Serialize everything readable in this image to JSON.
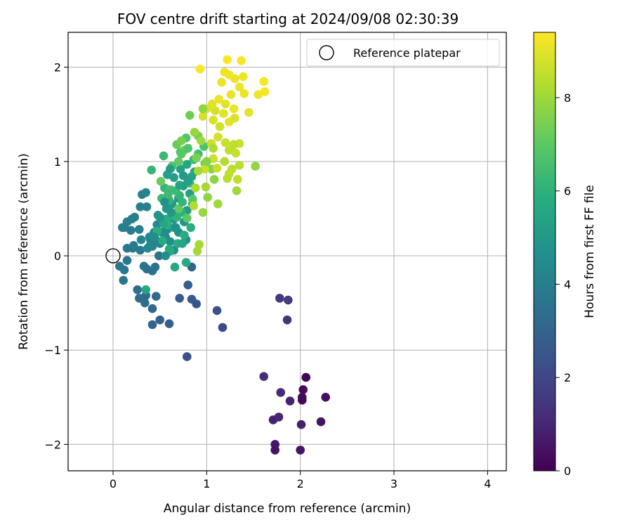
{
  "chart_data": {
    "type": "scatter",
    "title": "FOV centre drift starting at 2024/09/08 02:30:39",
    "xlabel": "Angular distance from reference (arcmin)",
    "ylabel": "Rotation from reference (arcmin)",
    "xlim": [
      -0.48,
      4.2
    ],
    "ylim": [
      -2.28,
      2.37
    ],
    "x_ticks": [
      0,
      1,
      2,
      3,
      4
    ],
    "y_ticks": [
      -2,
      -1,
      0,
      1,
      2
    ],
    "grid": true,
    "legend": {
      "placement": "top-right",
      "entries": [
        "Reference platepar"
      ]
    },
    "reference_point": {
      "x": 0,
      "y": 0
    },
    "colorbar": {
      "label": "Hours from first FF file",
      "ticks": [
        0,
        2,
        4,
        6,
        8
      ],
      "range": [
        0,
        9.4
      ],
      "colormap": "viridis"
    },
    "points": [
      [
        2.06,
        -1.29,
        0.1
      ],
      [
        2.03,
        -1.42,
        0.2
      ],
      [
        2.02,
        -1.5,
        0.3
      ],
      [
        2.02,
        -1.53,
        0.2
      ],
      [
        2.27,
        -1.5,
        0.4
      ],
      [
        2.22,
        -1.76,
        0.5
      ],
      [
        2.01,
        -1.79,
        0.8
      ],
      [
        2.0,
        -2.06,
        0.5
      ],
      [
        1.73,
        -2.0,
        0.6
      ],
      [
        1.73,
        -2.06,
        0.5
      ],
      [
        1.71,
        -1.74,
        0.9
      ],
      [
        1.77,
        -1.71,
        1.0
      ],
      [
        1.89,
        -1.54,
        0.9
      ],
      [
        1.79,
        -1.45,
        1.1
      ],
      [
        1.61,
        -1.28,
        1.2
      ],
      [
        1.78,
        -0.45,
        1.6
      ],
      [
        1.87,
        -0.47,
        1.7
      ],
      [
        1.86,
        -0.68,
        1.4
      ],
      [
        1.17,
        -0.76,
        2.1
      ],
      [
        1.11,
        -0.58,
        2.3
      ],
      [
        0.79,
        -1.07,
        2.3
      ],
      [
        0.89,
        -0.51,
        2.5
      ],
      [
        0.84,
        -0.46,
        2.6
      ],
      [
        0.71,
        -0.45,
        2.7
      ],
      [
        0.8,
        -0.31,
        2.8
      ],
      [
        0.6,
        -0.72,
        2.9
      ],
      [
        0.5,
        -0.68,
        2.9
      ],
      [
        0.42,
        -0.73,
        3.0
      ],
      [
        0.84,
        -0.12,
        3.1
      ],
      [
        0.35,
        -0.42,
        3.2
      ],
      [
        0.46,
        -0.43,
        3.2
      ],
      [
        0.42,
        -0.56,
        3.1
      ],
      [
        0.28,
        -0.45,
        3.3
      ],
      [
        0.34,
        -0.5,
        3.4
      ],
      [
        0.26,
        -0.36,
        3.4
      ],
      [
        0.42,
        -0.16,
        3.5
      ],
      [
        0.45,
        -0.12,
        3.5
      ],
      [
        0.36,
        -0.14,
        3.5
      ],
      [
        0.33,
        -0.11,
        3.6
      ],
      [
        0.49,
        0.0,
        3.6
      ],
      [
        0.11,
        -0.26,
        3.6
      ],
      [
        0.12,
        -0.15,
        3.7
      ],
      [
        0.07,
        -0.11,
        3.7
      ],
      [
        0.15,
        -0.05,
        3.7
      ],
      [
        0.15,
        0.08,
        3.8
      ],
      [
        0.21,
        0.08,
        3.8
      ],
      [
        0.29,
        0.06,
        3.8
      ],
      [
        0.22,
        0.11,
        3.9
      ],
      [
        0.39,
        0.1,
        3.9
      ],
      [
        0.12,
        0.3,
        3.9
      ],
      [
        0.19,
        0.27,
        3.9
      ],
      [
        0.28,
        0.28,
        4.0
      ],
      [
        0.1,
        0.3,
        4.0
      ],
      [
        0.15,
        0.36,
        4.0
      ],
      [
        0.2,
        0.39,
        4.0
      ],
      [
        0.23,
        0.41,
        4.0
      ],
      [
        0.29,
        0.52,
        4.1
      ],
      [
        0.36,
        0.52,
        4.1
      ],
      [
        0.31,
        0.65,
        4.1
      ],
      [
        0.35,
        0.67,
        4.2
      ],
      [
        0.42,
        0.1,
        4.2
      ],
      [
        0.4,
        0.17,
        4.2
      ],
      [
        0.45,
        0.18,
        4.2
      ],
      [
        0.39,
        0.2,
        4.3
      ],
      [
        0.5,
        0.13,
        4.3
      ],
      [
        0.44,
        0.25,
        4.3
      ],
      [
        0.47,
        0.33,
        4.4
      ],
      [
        0.56,
        0.2,
        4.4
      ],
      [
        0.52,
        0.25,
        4.5
      ],
      [
        0.65,
        0.06,
        4.5
      ],
      [
        0.61,
        0.15,
        4.6
      ],
      [
        0.58,
        0.28,
        4.6
      ],
      [
        0.7,
        0.25,
        4.7
      ],
      [
        0.78,
        0.17,
        4.7
      ],
      [
        0.65,
        0.39,
        4.8
      ],
      [
        0.48,
        0.43,
        4.8
      ],
      [
        0.57,
        0.5,
        4.9
      ],
      [
        0.76,
        0.36,
        4.9
      ],
      [
        0.63,
        0.55,
        5.0
      ],
      [
        0.7,
        0.61,
        5.0
      ],
      [
        0.79,
        0.48,
        5.1
      ],
      [
        0.85,
        0.55,
        5.1
      ],
      [
        0.82,
        0.66,
        5.2
      ],
      [
        0.75,
        0.74,
        5.2
      ],
      [
        0.65,
        0.83,
        5.3
      ],
      [
        0.58,
        0.86,
        5.3
      ],
      [
        0.72,
        0.92,
        5.4
      ],
      [
        0.84,
        0.84,
        5.4
      ],
      [
        0.79,
        0.97,
        5.5
      ],
      [
        0.87,
        0.89,
        5.5
      ],
      [
        0.35,
        -0.36,
        5.6
      ],
      [
        0.66,
        -0.12,
        5.6
      ],
      [
        0.78,
        -0.07,
        5.7
      ],
      [
        0.61,
        0.05,
        5.7
      ],
      [
        0.69,
        0.13,
        5.8
      ],
      [
        0.76,
        0.22,
        5.8
      ],
      [
        0.83,
        0.3,
        5.9
      ],
      [
        0.57,
        0.39,
        5.9
      ],
      [
        0.66,
        0.42,
        6.0
      ],
      [
        0.73,
        0.46,
        6.0
      ],
      [
        0.6,
        0.59,
        6.1
      ],
      [
        0.71,
        0.64,
        6.1
      ],
      [
        0.55,
        0.72,
        6.2
      ],
      [
        0.41,
        0.91,
        6.2
      ],
      [
        0.54,
        1.06,
        6.3
      ],
      [
        0.82,
        0.77,
        6.3
      ],
      [
        0.86,
        1.02,
        6.4
      ],
      [
        0.91,
        1.08,
        6.5
      ],
      [
        0.72,
        1.1,
        6.6
      ],
      [
        0.97,
        1.16,
        6.7
      ],
      [
        0.78,
        1.25,
        6.8
      ],
      [
        0.85,
        0.6,
        6.9
      ],
      [
        0.79,
        0.4,
        7.0
      ],
      [
        0.7,
        0.5,
        7.1
      ],
      [
        0.62,
        0.7,
        7.1
      ],
      [
        0.51,
        0.79,
        7.2
      ],
      [
        0.68,
        1.18,
        7.2
      ],
      [
        0.82,
        1.49,
        7.3
      ],
      [
        0.73,
        1.22,
        7.4
      ],
      [
        0.91,
        1.27,
        7.4
      ],
      [
        0.98,
        0.98,
        7.5
      ],
      [
        1.05,
        0.92,
        7.6
      ],
      [
        1.08,
        0.81,
        7.7
      ],
      [
        1.01,
        0.62,
        7.8
      ],
      [
        0.96,
        0.46,
        7.9
      ],
      [
        1.12,
        0.55,
        8.0
      ],
      [
        0.92,
        0.12,
        8.1
      ],
      [
        0.9,
        0.05,
        8.1
      ],
      [
        0.88,
        0.72,
        8.2
      ],
      [
        0.86,
        0.53,
        8.3
      ],
      [
        1.19,
        1.0,
        8.3
      ],
      [
        1.27,
        0.92,
        8.4
      ],
      [
        1.33,
        0.81,
        8.5
      ],
      [
        1.24,
        0.87,
        8.5
      ],
      [
        1.31,
        1.09,
        8.6
      ],
      [
        1.2,
        1.2,
        8.6
      ],
      [
        1.35,
        1.19,
        8.7
      ],
      [
        1.14,
        1.37,
        8.7
      ],
      [
        0.96,
        1.48,
        8.8
      ],
      [
        1.09,
        1.54,
        8.8
      ],
      [
        1.3,
        1.46,
        8.9
      ],
      [
        1.45,
        1.52,
        9.0
      ],
      [
        1.06,
        1.61,
        9.0
      ],
      [
        1.2,
        1.61,
        9.0
      ],
      [
        1.26,
        1.71,
        9.1
      ],
      [
        1.16,
        1.84,
        9.1
      ],
      [
        1.3,
        1.88,
        9.1
      ],
      [
        1.35,
        1.79,
        9.2
      ],
      [
        1.4,
        1.72,
        9.2
      ],
      [
        1.19,
        1.95,
        9.2
      ],
      [
        1.22,
        2.08,
        9.3
      ],
      [
        1.37,
        2.07,
        9.3
      ],
      [
        0.93,
        1.98,
        9.3
      ],
      [
        1.61,
        1.85,
        9.3
      ],
      [
        1.62,
        1.74,
        9.3
      ],
      [
        1.55,
        1.71,
        9.2
      ],
      [
        1.39,
        1.9,
        9.2
      ],
      [
        1.24,
        1.92,
        9.2
      ],
      [
        1.29,
        1.56,
        9.1
      ],
      [
        1.13,
        1.66,
        9.1
      ],
      [
        1.18,
        1.51,
        9.0
      ],
      [
        1.24,
        1.42,
        9.0
      ],
      [
        1.07,
        1.44,
        8.9
      ],
      [
        1.0,
        1.56,
        8.9
      ],
      [
        1.12,
        1.26,
        8.8
      ],
      [
        1.05,
        1.19,
        8.7
      ],
      [
        1.07,
        1.03,
        8.7
      ],
      [
        0.98,
        0.92,
        8.6
      ],
      [
        1.11,
        0.93,
        8.6
      ],
      [
        1.24,
        1.12,
        8.5
      ],
      [
        1.29,
        1.18,
        8.5
      ],
      [
        1.35,
        0.96,
        8.4
      ],
      [
        1.22,
        0.82,
        8.4
      ],
      [
        1.52,
        0.95,
        7.8
      ],
      [
        1.32,
        0.69,
        8.0
      ],
      [
        0.99,
        0.73,
        8.1
      ],
      [
        1.07,
        1.14,
        8.2
      ],
      [
        0.91,
        0.9,
        8.1
      ],
      [
        0.94,
        1.22,
        8.0
      ],
      [
        0.87,
        1.31,
        7.9
      ],
      [
        0.96,
        1.56,
        7.8
      ],
      [
        1.0,
        1.0,
        7.6
      ],
      [
        0.89,
        1.04,
        7.5
      ],
      [
        0.76,
        1.12,
        7.3
      ],
      [
        0.7,
        1.0,
        7.1
      ],
      [
        0.73,
        1.08,
        6.9
      ],
      [
        0.8,
        1.14,
        6.8
      ],
      [
        0.63,
        0.95,
        6.7
      ],
      [
        0.6,
        0.7,
        6.5
      ],
      [
        0.52,
        0.61,
        6.4
      ],
      [
        0.59,
        0.66,
        6.4
      ],
      [
        0.67,
        0.69,
        6.3
      ],
      [
        0.74,
        0.57,
        6.2
      ],
      [
        0.68,
        0.41,
        6.1
      ],
      [
        0.58,
        0.33,
        6.0
      ],
      [
        0.47,
        0.26,
        5.9
      ],
      [
        0.53,
        0.16,
        5.8
      ],
      [
        0.6,
        0.07,
        5.7
      ],
      [
        0.54,
        0.34,
        5.6
      ],
      [
        0.65,
        0.3,
        5.6
      ],
      [
        0.74,
        0.13,
        5.5
      ],
      [
        0.71,
        0.75,
        5.4
      ],
      [
        0.8,
        0.79,
        5.3
      ],
      [
        0.61,
        0.92,
        5.2
      ],
      [
        0.75,
        0.85,
        5.1
      ],
      [
        0.62,
        0.46,
        5.0
      ],
      [
        0.5,
        0.41,
        4.9
      ],
      [
        0.55,
        0.57,
        4.8
      ],
      [
        0.67,
        0.3,
        4.7
      ],
      [
        0.56,
        0.0,
        4.6
      ],
      [
        0.44,
        0.2,
        4.5
      ],
      [
        0.37,
        0.08,
        4.4
      ],
      [
        0.3,
        0.17,
        4.3
      ]
    ]
  }
}
